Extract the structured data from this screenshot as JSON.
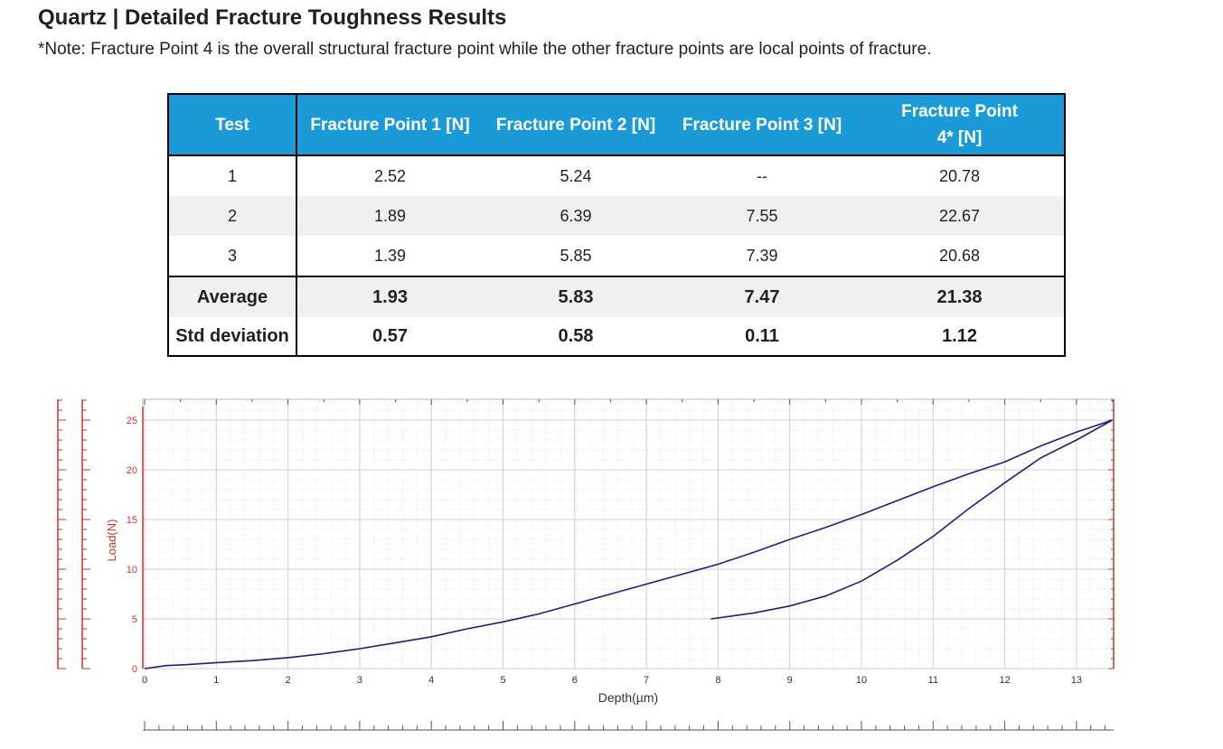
{
  "header": {
    "title": "Quartz | Detailed Fracture Toughness Results",
    "note": "*Note: Fracture Point 4 is the overall structural fracture point while the other fracture points are local points of fracture."
  },
  "table": {
    "columns": [
      "Test",
      "Fracture Point 1 [N]",
      "Fracture Point 2 [N]",
      "Fracture Point 3 [N]",
      "Fracture Point 4* [N]"
    ],
    "rows": [
      [
        "1",
        "2.52",
        "5.24",
        "--",
        "20.78"
      ],
      [
        "2",
        "1.89",
        "6.39",
        "7.55",
        "22.67"
      ],
      [
        "3",
        "1.39",
        "5.85",
        "7.39",
        "20.68"
      ]
    ],
    "average": [
      "Average",
      "1.93",
      "5.83",
      "7.47",
      "21.38"
    ],
    "std": [
      "Std deviation",
      "0.57",
      "0.58",
      "0.11",
      "1.12"
    ],
    "header_color": "#1a9bd7"
  },
  "chart_data": {
    "type": "line",
    "xlabel": "Depth(µm)",
    "ylabel": "Load(N)",
    "xlim": [
      0,
      13.5
    ],
    "ylim": [
      0,
      25
    ],
    "x_ticks": [
      0,
      1,
      2,
      3,
      4,
      5,
      6,
      7,
      8,
      9,
      10,
      11,
      12,
      13
    ],
    "y_ticks": [
      0,
      5,
      10,
      15,
      20,
      25
    ],
    "grid": true,
    "line_color": "#1f1f7a",
    "axis_color": "#c0392b",
    "series": [
      {
        "x": [
          0.0,
          0.3,
          0.6,
          1.0,
          1.5,
          2.0,
          2.5,
          3.0,
          3.5,
          4.0,
          4.5,
          5.0,
          5.5,
          6.0,
          6.5,
          7.0,
          7.5,
          8.0,
          8.5,
          9.0,
          9.5,
          10.0,
          10.5,
          11.0,
          11.5,
          12.0,
          12.5,
          13.0,
          13.5
        ],
        "y": [
          0.0,
          0.3,
          0.4,
          0.6,
          0.8,
          1.1,
          1.5,
          2.0,
          2.6,
          3.2,
          4.0,
          4.7,
          5.5,
          6.5,
          7.5,
          8.5,
          9.5,
          10.5,
          11.7,
          13.0,
          14.2,
          15.5,
          16.9,
          18.3,
          19.6,
          20.8,
          22.4,
          23.8,
          25.0
        ]
      },
      {
        "x": [
          7.9,
          8.5,
          9.0,
          9.5,
          10.0,
          10.5,
          11.0,
          11.5,
          12.0,
          12.5,
          13.0,
          13.5
        ],
        "y": [
          5.0,
          5.6,
          6.3,
          7.3,
          8.8,
          10.9,
          13.3,
          16.1,
          18.7,
          21.2,
          23.0,
          25.0
        ]
      }
    ]
  }
}
